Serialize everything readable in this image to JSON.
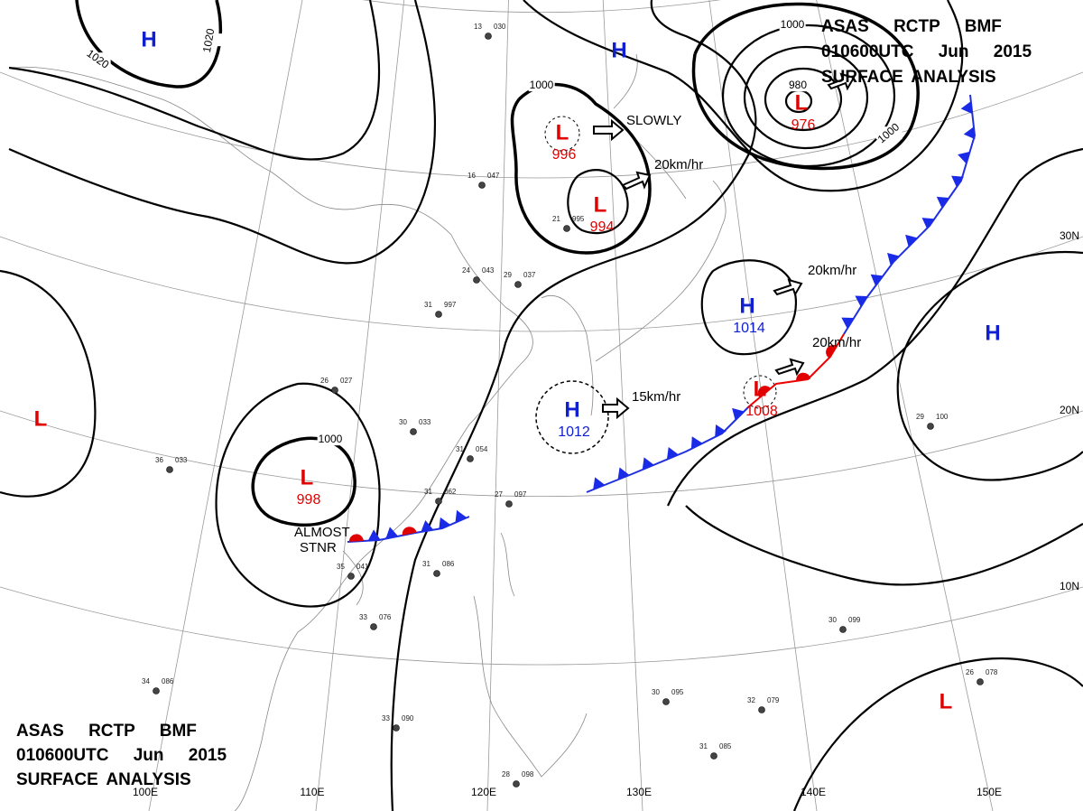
{
  "header_top": [
    "ASAS RCTP BMF",
    "010600UTC Jun 2015",
    "SURFACE ANALYSIS"
  ],
  "header_bottom": [
    "ASAS RCTP BMF",
    "010600UTC Jun 2015",
    "SURFACE ANALYSIS"
  ],
  "pressure_systems": [
    {
      "symbol": "H"
    },
    {
      "symbol": "H"
    },
    {
      "symbol": "L",
      "pressure": 996
    },
    {
      "symbol": "L",
      "pressure": 994
    },
    {
      "symbol": "L",
      "pressure": 976
    },
    {
      "symbol": "H",
      "pressure": 1014
    },
    {
      "symbol": "H",
      "pressure": 1012
    },
    {
      "symbol": "L",
      "pressure": 1008
    },
    {
      "symbol": "H"
    },
    {
      "symbol": "L"
    },
    {
      "symbol": "L",
      "pressure": 998
    },
    {
      "symbol": "L"
    }
  ],
  "isobar_labels": [
    1020,
    1020,
    1000,
    1000,
    980,
    1000,
    1000
  ],
  "movements": [
    "SLOWLY",
    "20km/hr",
    "20km/hr",
    "20km/hr",
    "15km/hr",
    "ALMOST",
    "STNR"
  ],
  "lat_labels": [
    "30N",
    "20N",
    "10N"
  ],
  "lon_labels": [
    "100E",
    "110E",
    "120E",
    "130E",
    "140E",
    "150E"
  ],
  "stations": [
    {
      "temp": "13",
      "pressure": "030"
    },
    {
      "temp": "16",
      "pressure": "047"
    },
    {
      "temp": "24",
      "pressure": "043"
    },
    {
      "temp": "29",
      "pressure": "037"
    },
    {
      "temp": "31",
      "pressure": "997"
    },
    {
      "temp": "26",
      "pressure": "027"
    },
    {
      "temp": "30",
      "pressure": "033"
    },
    {
      "temp": "31",
      "pressure": "054"
    },
    {
      "temp": "31",
      "pressure": "062"
    },
    {
      "temp": "27",
      "pressure": "097"
    },
    {
      "temp": "31",
      "pressure": "086"
    },
    {
      "temp": "35",
      "pressure": "041"
    },
    {
      "temp": "33",
      "pressure": "076"
    },
    {
      "temp": "34",
      "pressure": "086"
    },
    {
      "temp": "33",
      "pressure": "090"
    },
    {
      "temp": "28",
      "pressure": "098"
    },
    {
      "temp": "30",
      "pressure": "095"
    },
    {
      "temp": "31",
      "pressure": "085"
    },
    {
      "temp": "32",
      "pressure": "079"
    },
    {
      "temp": "30",
      "pressure": "099"
    },
    {
      "temp": "26",
      "pressure": "078"
    },
    {
      "temp": "29",
      "pressure": "100"
    },
    {
      "temp": "36",
      "pressure": "033"
    },
    {
      "temp": "21",
      "pressure": "995"
    }
  ]
}
